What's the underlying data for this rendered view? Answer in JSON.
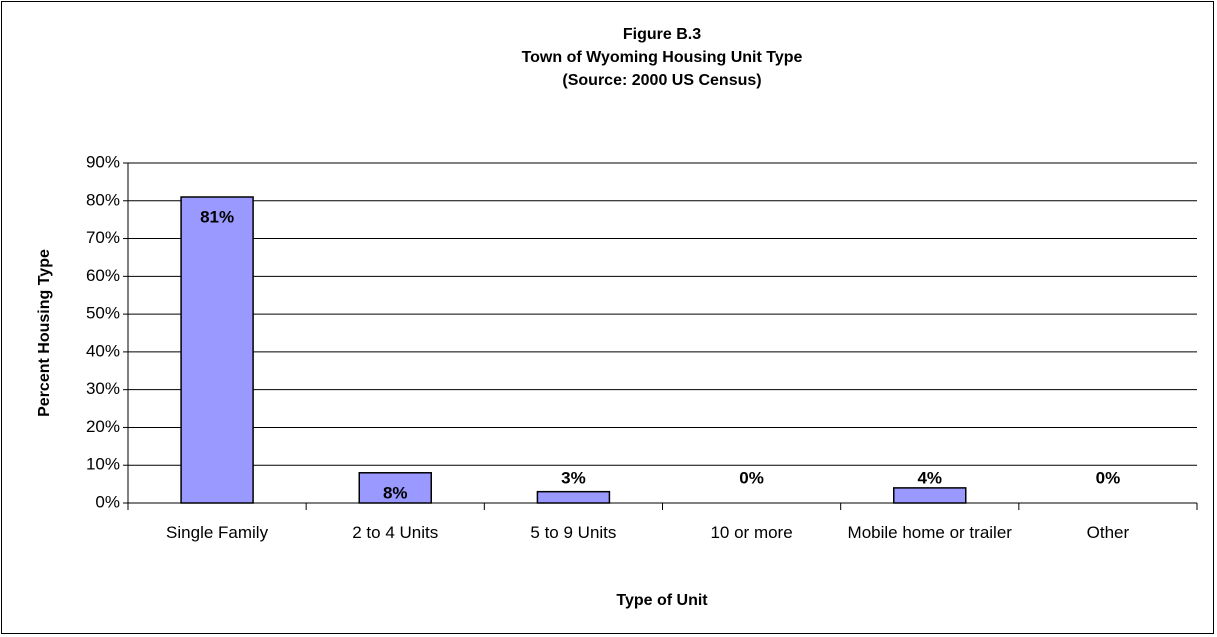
{
  "chart_data": {
    "type": "bar",
    "title": [
      "Figure B.3",
      "Town of Wyoming Housing Unit Type",
      "(Source:  2000 US Census)"
    ],
    "x_label": "Type of Unit",
    "y_label": "Percent Housing Type",
    "categories": [
      "Single Family",
      "2 to 4 Units",
      "5 to 9 Units",
      "10 or more",
      "Mobile home or trailer",
      "Other"
    ],
    "values": [
      81,
      8,
      3,
      0,
      4,
      0
    ],
    "value_labels": [
      "81%",
      "8%",
      "3%",
      "0%",
      "4%",
      "0%"
    ],
    "color": "#9999ff",
    "ylim": [
      0,
      90
    ],
    "yticks": [
      {
        "value": 0,
        "label": "0%"
      },
      {
        "value": 10,
        "label": "10%"
      },
      {
        "value": 20,
        "label": "20%"
      },
      {
        "value": 30,
        "label": "30%"
      },
      {
        "value": 40,
        "label": "40%"
      },
      {
        "value": 50,
        "label": "50%"
      },
      {
        "value": 60,
        "label": "60%"
      },
      {
        "value": 70,
        "label": "70%"
      },
      {
        "value": 80,
        "label": "80%"
      },
      {
        "value": 90,
        "label": "90%"
      }
    ],
    "grid": true
  }
}
